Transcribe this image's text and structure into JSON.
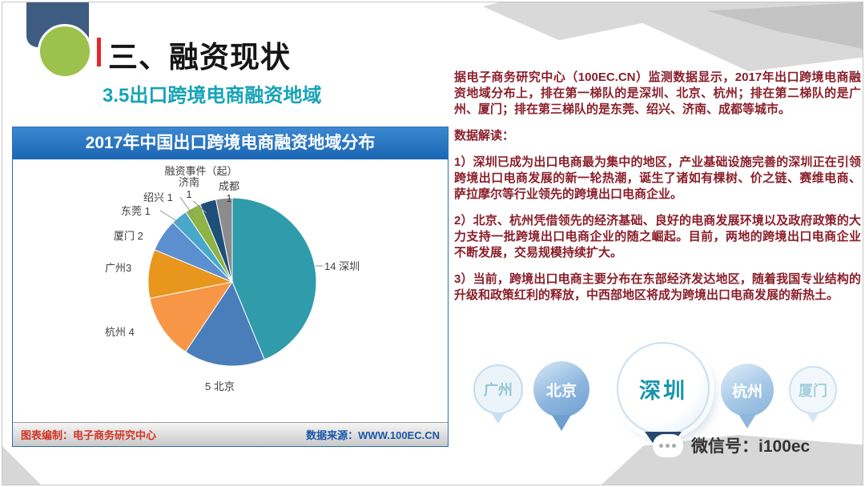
{
  "slide": {
    "title": "三、融资现状",
    "subtitle": "3.5出口跨境电商融资地域",
    "accent_red": "#e8252a",
    "accent_teal": "#16a3b6",
    "body_text_color": "#8a1f2b"
  },
  "chart_panel": {
    "footer_left": "图表编制：电子商务研究中心",
    "footer_right": "数据来源：WWW.100EC.CN",
    "header_color": "#1b66b4"
  },
  "chart_data": {
    "type": "pie",
    "title": "2017年中国出口跨境电商融资地域分布",
    "series_name": "融资事件（起）",
    "unit": "起",
    "categories": [
      "深圳",
      "北京",
      "杭州",
      "广州",
      "厦门",
      "东莞",
      "绍兴",
      "济南",
      "成都"
    ],
    "values": [
      14,
      5,
      4,
      3,
      2,
      1,
      1,
      1,
      1
    ],
    "colors": [
      "#2f9bab",
      "#4a7ebb",
      "#f79646",
      "#e8961e",
      "#5b8fd0",
      "#47a8c9",
      "#8fb347",
      "#1f4e79",
      "#8c8c8c"
    ],
    "point_labels": [
      "14 深圳",
      "5 北京",
      "杭州 4",
      "广州3",
      "厦门 2",
      "东莞 1",
      "绍兴 1",
      "济南\n1",
      "成都\n1"
    ],
    "legend_position": "none",
    "label_style": "outside-with-leader-lines"
  },
  "analysis": {
    "intro": "据电子商务研究中心（100EC.CN）监测数据显示，2017年出口跨境电商融资地域分布上，排在第一梯队的是深圳、北京、杭州；排在第二梯队的是广州、厦门；排在第三梯队的是东莞、绍兴、济南、成都等城市。",
    "heading": "数据解读：",
    "points": [
      "1）深圳已成为出口电商最为集中的地区，产业基础设施完善的深圳正在引领跨境出口电商发展的新一轮热潮，诞生了诸如有棵树、价之链、赛维电商、萨拉摩尔等行业领先的跨境出口电商企业。",
      "2）北京、杭州凭借领先的经济基础、良好的电商发展环境以及政府政策的大力支持一批跨境出口电商企业的随之崛起。目前，两地的跨境出口电商企业不断发展，交易规模持续扩大。",
      "3）当前，跨境出口电商主要分布在东部经济发达地区，随着我国专业结构的升级和政策红利的释放，中西部地区将成为跨境出口电商发展的新热土。"
    ]
  },
  "map_pins": [
    {
      "label": "广州",
      "emphasis": "ghost"
    },
    {
      "label": "北京",
      "emphasis": "solid"
    },
    {
      "label": "深圳",
      "emphasis": "featured"
    },
    {
      "label": "杭州",
      "emphasis": "solid"
    },
    {
      "label": "厦门",
      "emphasis": "ghost"
    }
  ],
  "wechat": {
    "label": "微信号：i100ec"
  }
}
